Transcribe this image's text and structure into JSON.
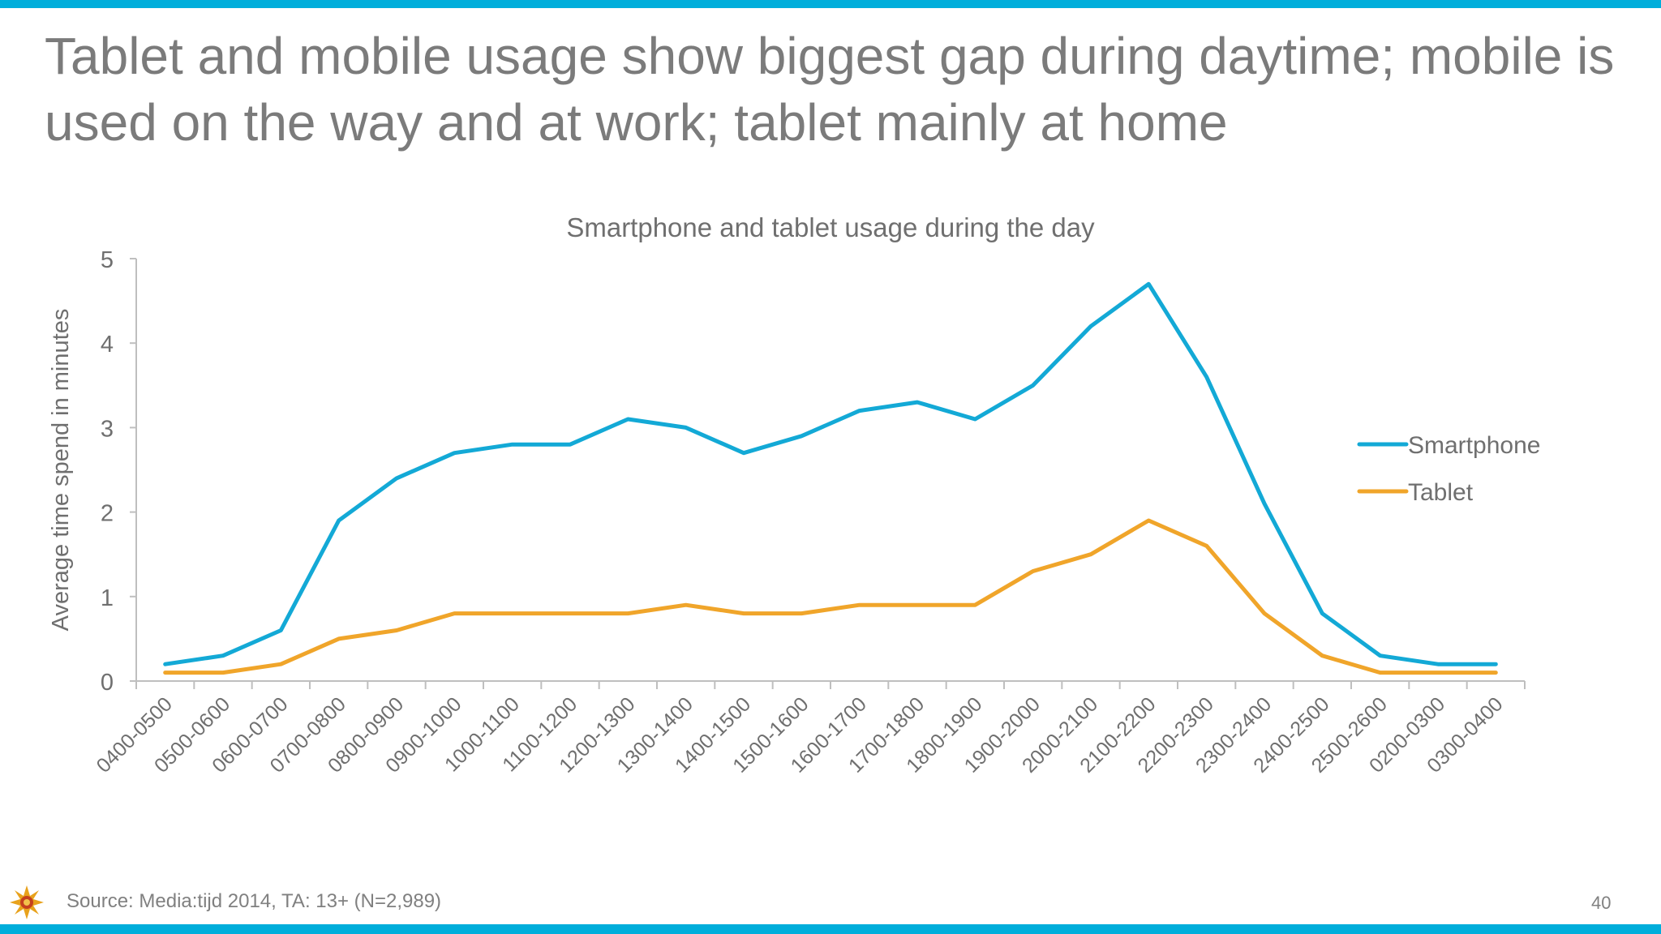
{
  "slide": {
    "headline": "Tablet and mobile usage show biggest gap during daytime; mobile is used on the way and at work; tablet mainly at home",
    "source": "Source: Media:tijd 2014, TA: 13+ (N=2,989)",
    "page_number": "40",
    "accent_color": "#00aedb"
  },
  "chart_data": {
    "type": "line",
    "title": "Smartphone and tablet usage during the day",
    "xlabel": "",
    "ylabel": "Average time spend in minutes",
    "ylim": [
      0,
      5
    ],
    "yticks": [
      0,
      1,
      2,
      3,
      4,
      5
    ],
    "grid": false,
    "legend_position": "right",
    "categories": [
      "0400-0500",
      "0500-0600",
      "0600-0700",
      "0700-0800",
      "0800-0900",
      "0900-1000",
      "1000-1100",
      "1100-1200",
      "1200-1300",
      "1300-1400",
      "1400-1500",
      "1500-1600",
      "1600-1700",
      "1700-1800",
      "1800-1900",
      "1900-2000",
      "2000-2100",
      "2100-2200",
      "2200-2300",
      "2300-2400",
      "2400-2500",
      "2500-2600",
      "0200-0300",
      "0300-0400"
    ],
    "series": [
      {
        "name": "Smartphone",
        "color": "#13a9d6",
        "values": [
          0.2,
          0.3,
          0.6,
          1.9,
          2.4,
          2.7,
          2.8,
          2.8,
          3.1,
          3.0,
          2.7,
          2.9,
          3.2,
          3.3,
          3.1,
          3.5,
          4.2,
          4.7,
          3.6,
          2.1,
          0.8,
          0.3,
          0.2,
          0.2
        ]
      },
      {
        "name": "Tablet",
        "color": "#f0a52a",
        "values": [
          0.1,
          0.1,
          0.2,
          0.5,
          0.6,
          0.8,
          0.8,
          0.8,
          0.8,
          0.9,
          0.8,
          0.8,
          0.9,
          0.9,
          0.9,
          1.3,
          1.5,
          1.9,
          1.6,
          0.8,
          0.3,
          0.1,
          0.1,
          0.1
        ]
      }
    ]
  }
}
